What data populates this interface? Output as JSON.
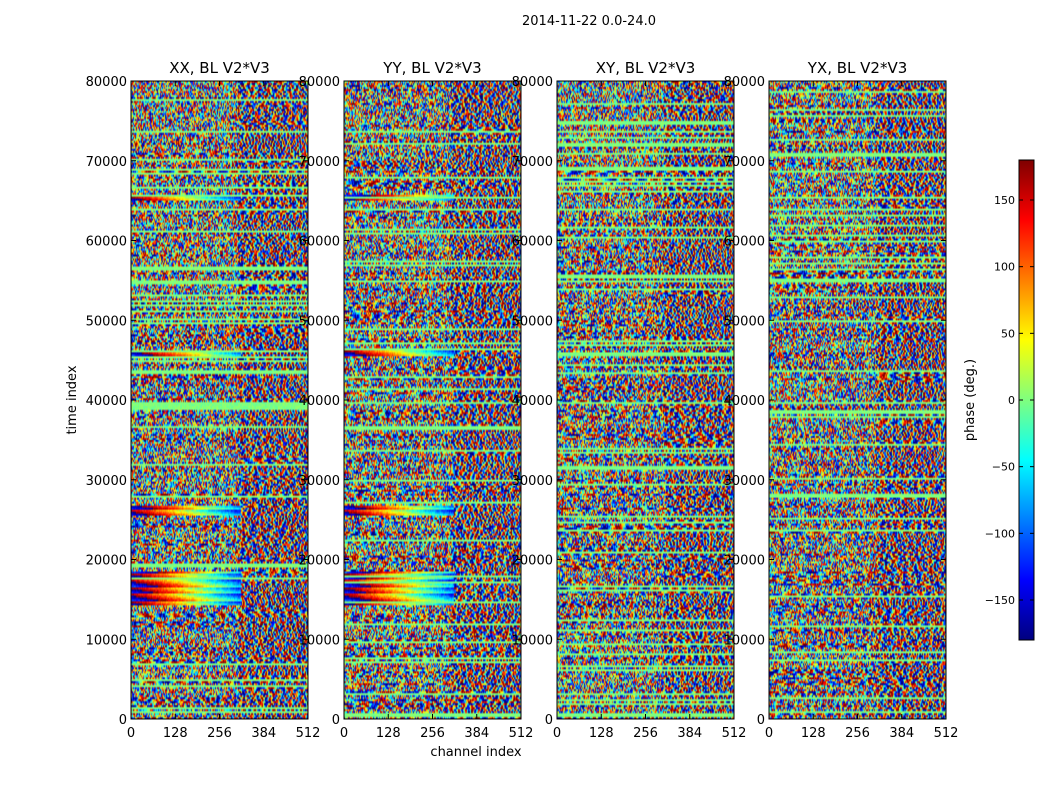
{
  "figure": {
    "suptitle": "2014-11-22 0.0-24.0"
  },
  "chart_data": {
    "type": "heatmap",
    "xlabel": "channel index",
    "ylabel": "time index",
    "xlim": [
      0,
      512
    ],
    "ylim": [
      0,
      80000
    ],
    "x_ticks": [
      "0",
      "128",
      "256",
      "384",
      "512"
    ],
    "y_ticks": [
      "0",
      "10000",
      "20000",
      "30000",
      "40000",
      "50000",
      "60000",
      "70000",
      "80000"
    ],
    "panels": [
      {
        "title": "XX, BL V2*V3",
        "polarization": "XX"
      },
      {
        "title": "YY, BL V2*V3",
        "polarization": "YY"
      },
      {
        "title": "XY, BL V2*V3",
        "polarization": "XY"
      },
      {
        "title": "YX, BL V2*V3",
        "polarization": "YX"
      }
    ],
    "colorbar": {
      "label": "phase (deg.)",
      "range": [
        -180,
        180
      ],
      "ticks": [
        "150",
        "100",
        "50",
        "0",
        "−50",
        "−100",
        "−150"
      ],
      "colormap": "jet"
    }
  },
  "colors": {
    "jet": [
      "#00007f",
      "#0000ff",
      "#007fff",
      "#00ffff",
      "#7fff7f",
      "#ffff00",
      "#ff7f00",
      "#ff0000",
      "#7f0000"
    ]
  }
}
